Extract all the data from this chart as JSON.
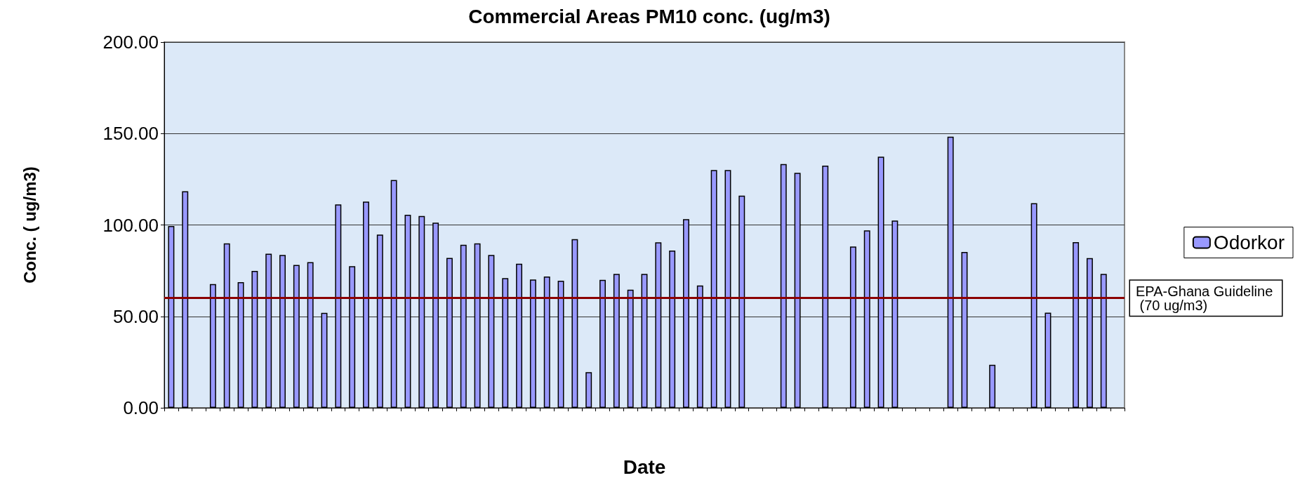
{
  "chart_data": {
    "type": "bar",
    "title": "Commercial Areas PM10 conc. (ug/m3)",
    "xlabel": "Date",
    "ylabel": "Conc. ( ug/m3)",
    "categories": [
      null,
      null,
      null,
      null,
      null,
      null,
      null,
      null,
      null,
      null,
      null,
      null,
      null,
      null,
      null,
      null,
      null,
      null,
      null,
      null,
      null,
      null,
      null,
      null,
      null,
      null,
      null,
      null,
      null,
      null,
      null,
      null,
      null,
      null,
      null,
      null,
      null,
      null,
      null,
      null,
      null,
      null,
      null,
      null,
      null,
      null,
      null,
      null,
      null,
      null,
      null,
      null,
      null,
      null,
      null,
      null,
      null,
      null,
      null,
      null,
      null,
      null,
      null,
      null,
      null,
      null,
      null,
      null,
      null
    ],
    "series": [
      {
        "name": "Odorkor",
        "color": "#9999ff",
        "values": [
          99.4,
          118.4,
          null,
          67.7,
          89.9,
          68.7,
          74.9,
          84.3,
          83.6,
          78.1,
          79.7,
          51.9,
          111.2,
          77.4,
          112.8,
          94.7,
          124.6,
          105.6,
          104.9,
          101.2,
          82.0,
          89.2,
          89.9,
          83.6,
          70.9,
          78.8,
          70.2,
          71.8,
          69.5,
          92.2,
          19.5,
          70.0,
          73.2,
          64.6,
          73.2,
          90.5,
          86.0,
          103.2,
          66.9,
          130,
          130,
          116.0,
          null,
          null,
          133.3,
          128.5,
          null,
          132.4,
          null,
          88.2,
          97.0,
          137.3,
          102.4,
          null,
          null,
          null,
          148.3,
          85.2,
          null,
          23.5,
          null,
          null,
          111.9,
          52.0,
          null,
          90.6,
          81.9,
          73.2,
          null
        ]
      }
    ],
    "ylim": [
      0,
      200
    ],
    "yticks": [
      {
        "value": 0,
        "label": "0.00"
      },
      {
        "value": 50,
        "label": "50.00"
      },
      {
        "value": 100,
        "label": "100.00"
      },
      {
        "value": 150,
        "label": "150.00"
      },
      {
        "value": 200,
        "label": "200.00"
      }
    ],
    "grid": "y",
    "legend": "right",
    "ref_lines": [
      {
        "axis": "y",
        "value": 60,
        "label": "EPA-Ghana Guideline (70 ug/m3)",
        "color": "#8b0000"
      }
    ]
  }
}
